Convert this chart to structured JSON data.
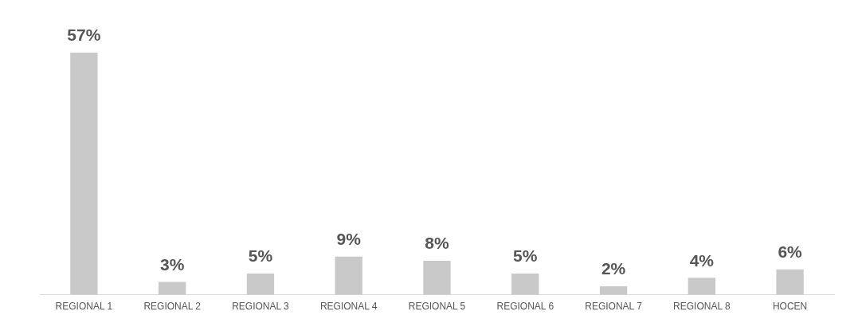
{
  "chart_data": {
    "type": "bar",
    "categories": [
      "REGIONAL 1",
      "REGIONAL 2",
      "REGIONAL 3",
      "REGIONAL 4",
      "REGIONAL 5",
      "REGIONAL 6",
      "REGIONAL 7",
      "REGIONAL 8",
      "HOCEN"
    ],
    "values": [
      57,
      3,
      5,
      9,
      8,
      5,
      2,
      4,
      6
    ],
    "value_labels": [
      "57%",
      "3%",
      "5%",
      "9%",
      "8%",
      "5%",
      "2%",
      "4%",
      "6%"
    ],
    "color": "#c9c9c9",
    "grid": false,
    "legend": false
  }
}
